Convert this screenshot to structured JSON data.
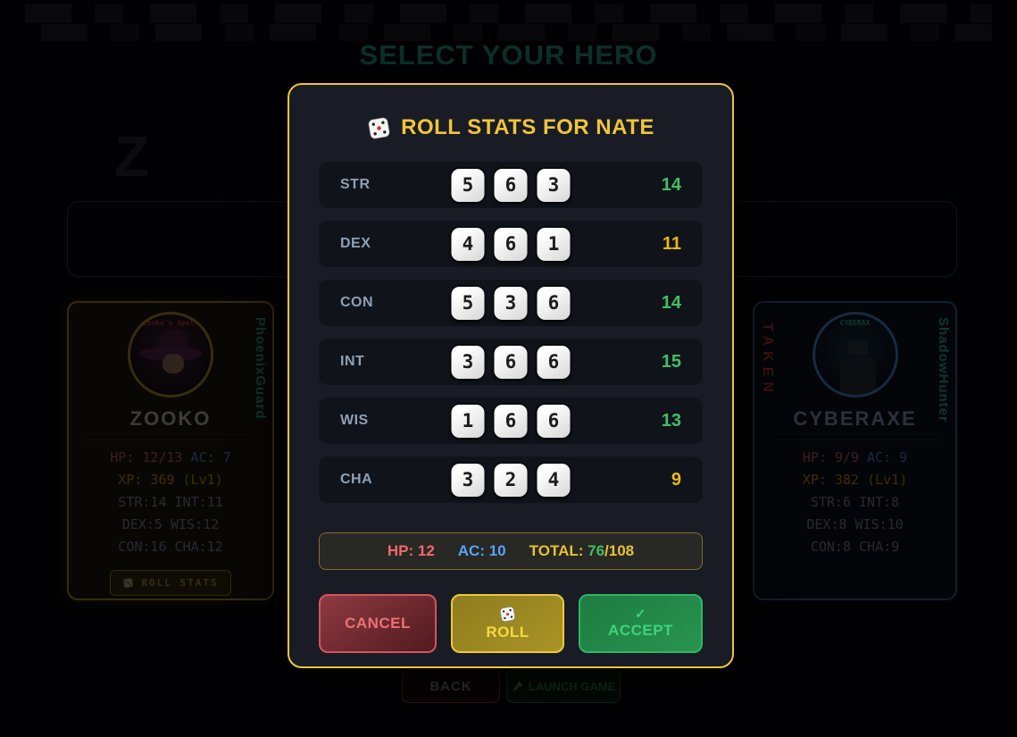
{
  "page": {
    "title": "SELECT YOUR HERO"
  },
  "modal": {
    "title": "ROLL STATS FOR NATE",
    "rows": [
      {
        "stat": "STR",
        "dice": [
          5,
          6,
          3
        ],
        "total": 14,
        "total_color": "#42be65"
      },
      {
        "stat": "DEX",
        "dice": [
          4,
          6,
          1
        ],
        "total": 11,
        "total_color": "#e8b816"
      },
      {
        "stat": "CON",
        "dice": [
          5,
          3,
          6
        ],
        "total": 14,
        "total_color": "#42be65"
      },
      {
        "stat": "INT",
        "dice": [
          3,
          6,
          6
        ],
        "total": 15,
        "total_color": "#42be65"
      },
      {
        "stat": "WIS",
        "dice": [
          1,
          6,
          6
        ],
        "total": 13,
        "total_color": "#42be65"
      },
      {
        "stat": "CHA",
        "dice": [
          3,
          2,
          4
        ],
        "total": 9,
        "total_color": "#e8b816"
      }
    ],
    "summary": {
      "hp": "HP: 12",
      "ac": "AC: 10",
      "total_label": "TOTAL:",
      "total_current": "76",
      "total_max": "/108"
    },
    "buttons": {
      "cancel": "CANCEL",
      "roll": "ROLL",
      "accept": "ACCEPT",
      "accept_check": "✓"
    }
  },
  "heroes": {
    "left": {
      "class_name": "PhoenixGuard",
      "name": "ZOOKO",
      "avatar_caption": "Zooko's Spell",
      "hp": "HP: 12/13",
      "ac": "AC: 7",
      "xp": "XP: 369 (Lv1)",
      "stat_lines": [
        "STR:14 INT:11",
        "DEX:5 WIS:12",
        "CON:16 CHA:12"
      ],
      "roll_button": "ROLL STATS"
    },
    "right": {
      "taken": "TAKEN",
      "class_name": "ShadowHunter",
      "name": "CYBERAXE",
      "avatar_caption": "CYBERAX",
      "hp": "HP: 9/9",
      "ac": "AC: 9",
      "xp": "XP: 382 (Lv1)",
      "stat_lines": [
        "STR:6 INT:8",
        "DEX:8 WIS:10",
        "CON:8 CHA:9"
      ]
    }
  },
  "footer": {
    "back": "BACK",
    "launch": "LAUNCH GAME"
  },
  "colors": {
    "accent_gold": "#f0c43c",
    "stat_green": "#42be65",
    "stat_yellow": "#e8b816",
    "hp_red": "#f0696e",
    "ac_blue": "#5aa2f7",
    "teal": "#2dd4bf"
  }
}
